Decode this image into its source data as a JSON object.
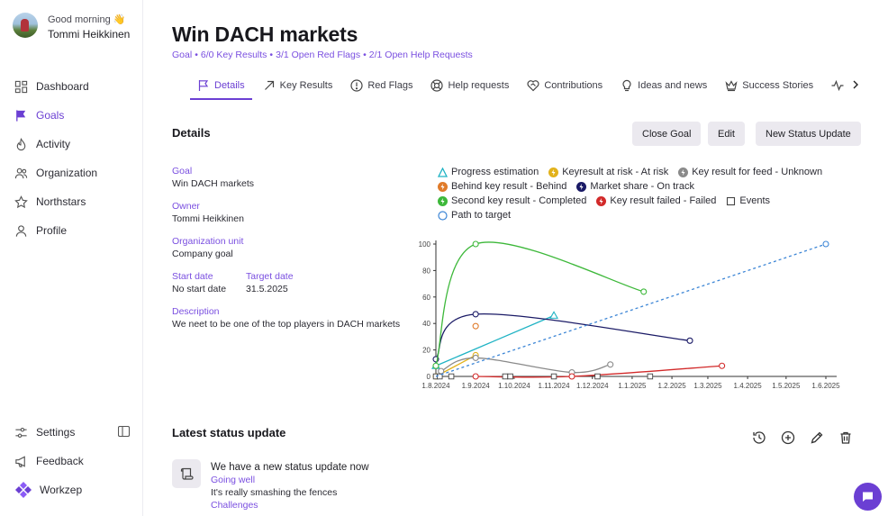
{
  "user": {
    "greeting": "Good morning 👋",
    "name": "Tommi Heikkinen"
  },
  "sidebar": {
    "items": [
      {
        "label": "Dashboard",
        "icon": "grid-icon"
      },
      {
        "label": "Goals",
        "icon": "flag-icon",
        "active": true
      },
      {
        "label": "Activity",
        "icon": "fire-icon"
      },
      {
        "label": "Organization",
        "icon": "people-icon"
      },
      {
        "label": "Northstars",
        "icon": "star-icon"
      },
      {
        "label": "Profile",
        "icon": "person-icon"
      }
    ],
    "bottom": [
      {
        "label": "Settings",
        "icon": "settings-icon"
      },
      {
        "label": "Feedback",
        "icon": "megaphone-icon"
      }
    ],
    "brand": "Workzep"
  },
  "page": {
    "title": "Win DACH markets",
    "breadcrumb": [
      "Goal",
      "6/0 Key Results",
      "3/1 Open Red Flags",
      "2/1 Open Help Requests"
    ],
    "tabs": [
      "Details",
      "Key Results",
      "Red Flags",
      "Help requests",
      "Contributions",
      "Ideas and news",
      "Success Stories"
    ]
  },
  "details": {
    "section_title": "Details",
    "buttons": {
      "close": "Close Goal",
      "edit": "Edit",
      "new_status": "New Status Update"
    },
    "goal_label": "Goal",
    "goal_value": "Win DACH markets",
    "owner_label": "Owner",
    "owner_value": "Tommi Heikkinen",
    "org_label": "Organization unit",
    "org_value": "Company goal",
    "start_label": "Start date",
    "start_value": "No start date",
    "target_label": "Target date",
    "target_value": "31.5.2025",
    "desc_label": "Description",
    "desc_value": "We neet to be one of the top players in DACH markets"
  },
  "chart_data": {
    "type": "line",
    "ylim": [
      0,
      100
    ],
    "yticks": [
      0,
      20,
      40,
      60,
      80,
      100
    ],
    "xticks": [
      "1.8.2024",
      "1.9.2024",
      "1.10.2024",
      "1.11.2024",
      "1.12.2024",
      "1.1.2025",
      "1.2.2025",
      "1.3.2025",
      "1.4.2025",
      "1.5.2025",
      "1.6.2025"
    ],
    "series": [
      {
        "name": "Progress estimation",
        "color": "#1fb3c4",
        "marker": "triangle",
        "points": [
          [
            "2024-08-01",
            8
          ],
          [
            "2024-11-01",
            46
          ]
        ]
      },
      {
        "name": "Keyresult at risk - At risk",
        "color": "#e2b21b",
        "marker": "circle",
        "points": [
          [
            "2024-08-01",
            0
          ],
          [
            "2024-09-01",
            16
          ]
        ]
      },
      {
        "name": "Key result for feed - Unknown",
        "color": "#8a8a8a",
        "marker": "circle",
        "points": [
          [
            "2024-08-05",
            4
          ],
          [
            "2024-09-01",
            14
          ],
          [
            "2024-11-15",
            3
          ],
          [
            "2024-12-15",
            9
          ]
        ]
      },
      {
        "name": "Behind key result - Behind",
        "color": "#e07b2a",
        "marker": "circle",
        "points": [
          [
            "2024-09-01",
            38
          ]
        ]
      },
      {
        "name": "Market share - On track",
        "color": "#1a1a66",
        "marker": "circle",
        "points": [
          [
            "2024-08-01",
            13
          ],
          [
            "2024-09-01",
            47
          ],
          [
            "2025-02-15",
            27
          ]
        ]
      },
      {
        "name": "Second key result - Completed",
        "color": "#3db83a",
        "marker": "circle",
        "points": [
          [
            "2024-08-01",
            8
          ],
          [
            "2024-09-01",
            100
          ],
          [
            "2025-01-10",
            64
          ]
        ]
      },
      {
        "name": "Key result failed - Failed",
        "color": "#d22a2a",
        "marker": "circle",
        "points": [
          [
            "2024-09-01",
            0
          ],
          [
            "2024-11-15",
            0
          ],
          [
            "2025-03-12",
            8
          ]
        ]
      },
      {
        "name": "Events",
        "color": "#444444",
        "marker": "square",
        "points": [
          [
            "2024-08-01",
            0
          ],
          [
            "2024-08-04",
            0
          ],
          [
            "2024-08-13",
            0
          ],
          [
            "2024-09-24",
            0
          ],
          [
            "2024-09-28",
            0
          ],
          [
            "2024-11-01",
            0
          ],
          [
            "2024-12-05",
            0
          ],
          [
            "2025-01-15",
            0
          ]
        ]
      },
      {
        "name": "Path to target",
        "color": "#3d86d6",
        "marker": "circle",
        "dashed": true,
        "points": [
          [
            "2024-08-01",
            0
          ],
          [
            "2025-06-01",
            100
          ]
        ]
      }
    ]
  },
  "status": {
    "title": "Latest status update",
    "update_title": "We have a new status update now",
    "going_well_label": "Going well",
    "going_well_text": "It's really smashing the fences",
    "challenges_label": "Challenges"
  }
}
